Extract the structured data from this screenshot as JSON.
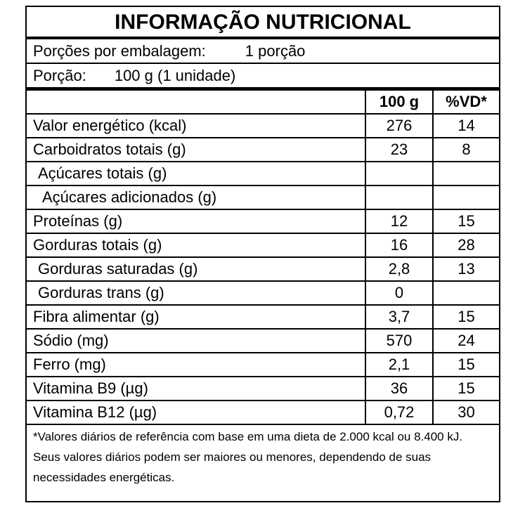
{
  "header": {
    "title": "INFORMAÇÃO NUTRICIONAL"
  },
  "serving": [
    {
      "label": "Porções por embalagem:",
      "value": "1 porção"
    },
    {
      "label": "Porção:",
      "value": "100 g (1 unidade)"
    }
  ],
  "table": {
    "columns": [
      "100 g",
      "%VD*"
    ],
    "rows": [
      {
        "name": "Valor energético (kcal)",
        "amount": "276",
        "dv": "14"
      },
      {
        "name": "Carboidratos totais (g)",
        "amount": "23",
        "dv": "8"
      },
      {
        "name": "Açúcares totais (g)"
      },
      {
        "name": "Açúcares adicionados (g)"
      },
      {
        "name": "Proteínas (g)",
        "amount": "12",
        "dv": "15"
      },
      {
        "name": "Gorduras totais (g)",
        "amount": "16",
        "dv": "28"
      },
      {
        "name": "Gorduras saturadas (g)",
        "amount": "2,8",
        "dv": "13"
      },
      {
        "name": "Gorduras trans (g)",
        "amount": "0"
      },
      {
        "name": "Fibra alimentar (g)",
        "amount": "3,7",
        "dv": "15"
      },
      {
        "name": "Sódio (mg)",
        "amount": "570",
        "dv": "24"
      },
      {
        "name": "Ferro (mg)",
        "amount": "2,1",
        "dv": "15"
      },
      {
        "name": "Vitamina B9 (µg)",
        "amount": "36",
        "dv": "15"
      },
      {
        "name": "Vitamina B12 (µg)",
        "amount": "0,72",
        "dv": "30"
      }
    ]
  },
  "footnote": "*Valores diários de referência com base em uma dieta de 2.000 kcal ou 8.400 kJ. Seus valores diários podem ser maiores ou menores, dependendo de suas necessidades energéticas."
}
